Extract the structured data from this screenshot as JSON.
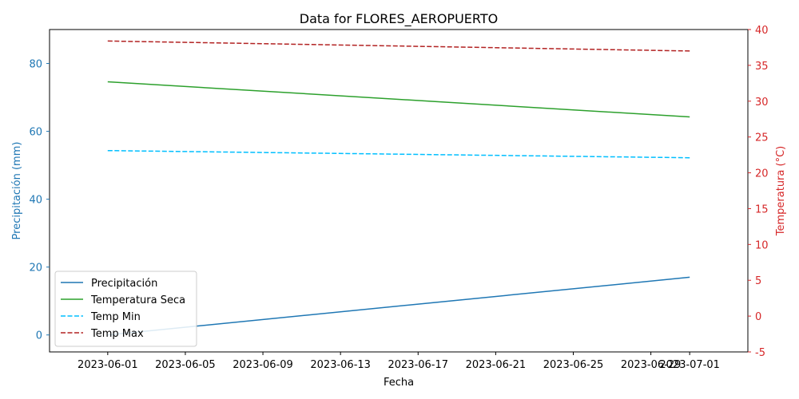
{
  "chart_data": {
    "type": "line",
    "title": "Data for FLORES_AEROPUERTO",
    "xlabel": "Fecha",
    "ylabel_left": "Precipitación (mm)",
    "ylabel_right": "Temperatura (°C)",
    "xlim": [
      "2023-05-29",
      "2023-07-04"
    ],
    "ylim_left": [
      -5,
      90
    ],
    "ylim_right": [
      -5,
      40
    ],
    "x_ticks": [
      "2023-06-01",
      "2023-06-05",
      "2023-06-09",
      "2023-06-13",
      "2023-06-17",
      "2023-06-21",
      "2023-06-25",
      "2023-06-29",
      "2023-07-01"
    ],
    "y_ticks_left": [
      0,
      20,
      40,
      60,
      80
    ],
    "y_ticks_right": [
      -5,
      0,
      5,
      10,
      15,
      20,
      25,
      30,
      35,
      40
    ],
    "grid": false,
    "legend_position": "lower-left",
    "left_axis_color": "#1f77b4",
    "right_axis_color": "#d62728",
    "series": [
      {
        "name": "Precipitación",
        "axis": "left",
        "color": "#1f77b4",
        "style": "solid",
        "x": [
          "2023-06-01",
          "2023-07-01"
        ],
        "values": [
          0,
          17
        ]
      },
      {
        "name": "Temperatura Seca",
        "axis": "right",
        "color": "#2ca02c",
        "style": "solid",
        "x": [
          "2023-06-01",
          "2023-07-01"
        ],
        "values": [
          32.7,
          27.8
        ]
      },
      {
        "name": "Temp Min",
        "axis": "right",
        "color": "#00bfff",
        "style": "dashed",
        "x": [
          "2023-06-01",
          "2023-07-01"
        ],
        "values": [
          23.1,
          22.1
        ]
      },
      {
        "name": "Temp Max",
        "axis": "right",
        "color": "#b22222",
        "style": "dashed",
        "x": [
          "2023-06-01",
          "2023-07-01"
        ],
        "values": [
          38.4,
          37.0
        ]
      }
    ]
  }
}
